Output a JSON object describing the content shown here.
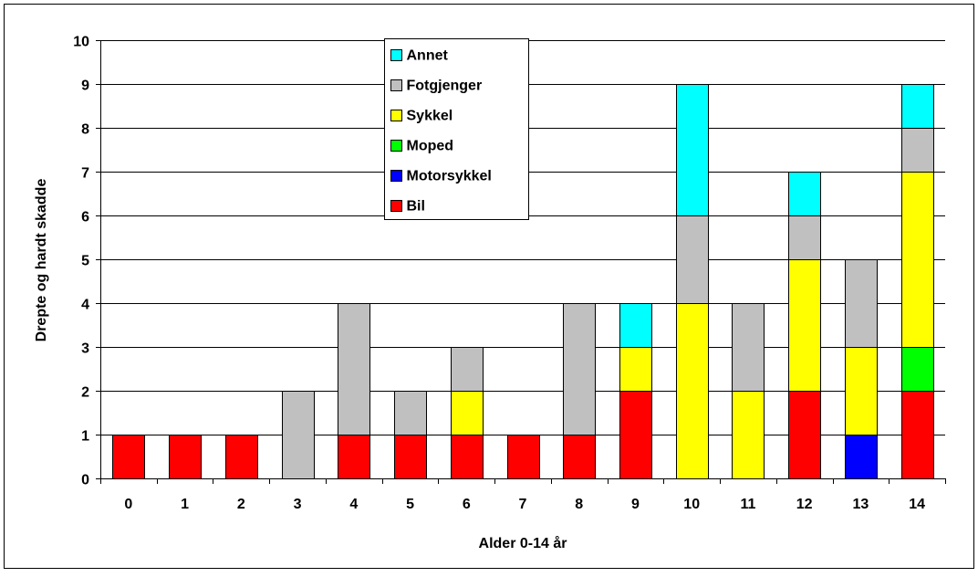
{
  "chart_data": {
    "type": "bar",
    "stacked": true,
    "title": "",
    "xlabel": "Alder 0-14 år",
    "ylabel": "Drepte og hardt skadde",
    "ylim": [
      0,
      10
    ],
    "yticks": [
      "0",
      "1",
      "2",
      "3",
      "4",
      "5",
      "6",
      "7",
      "8",
      "9",
      "10"
    ],
    "grid": true,
    "legend_position": "top-center",
    "categories": [
      "0",
      "1",
      "2",
      "3",
      "4",
      "5",
      "6",
      "7",
      "8",
      "9",
      "10",
      "11",
      "12",
      "13",
      "14"
    ],
    "series": [
      {
        "name": "Bil",
        "color": "#ff0000",
        "values": [
          1,
          1,
          1,
          0,
          1,
          1,
          1,
          1,
          1,
          2,
          0,
          0,
          2,
          0,
          2
        ]
      },
      {
        "name": "Motorsykkel",
        "color": "#0000ff",
        "values": [
          0,
          0,
          0,
          0,
          0,
          0,
          0,
          0,
          0,
          0,
          0,
          0,
          0,
          1,
          0
        ]
      },
      {
        "name": "Moped",
        "color": "#00ff00",
        "values": [
          0,
          0,
          0,
          0,
          0,
          0,
          0,
          0,
          0,
          0,
          0,
          0,
          0,
          0,
          1
        ]
      },
      {
        "name": "Sykkel",
        "color": "#ffff00",
        "values": [
          0,
          0,
          0,
          0,
          0,
          0,
          1,
          0,
          0,
          1,
          4,
          2,
          3,
          2,
          4
        ]
      },
      {
        "name": "Fotgjenger",
        "color": "#c0c0c0",
        "values": [
          0,
          0,
          0,
          2,
          3,
          1,
          1,
          0,
          3,
          0,
          2,
          2,
          1,
          2,
          1
        ]
      },
      {
        "name": "Annet",
        "color": "#00ffff",
        "values": [
          0,
          0,
          0,
          0,
          0,
          0,
          0,
          0,
          0,
          1,
          3,
          0,
          1,
          0,
          1
        ]
      }
    ]
  }
}
